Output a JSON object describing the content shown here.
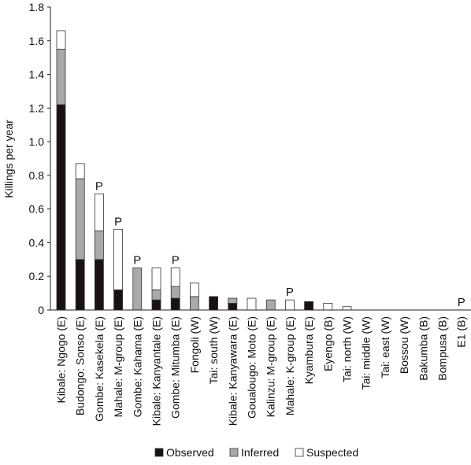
{
  "chart_data": {
    "type": "bar",
    "stacked": true,
    "ylabel": "Killings per year",
    "xlabel": "",
    "ylim": [
      0,
      1.8
    ],
    "yticks": [
      "0",
      "0.2",
      "0.4",
      "0.6",
      "0.8",
      "1.0",
      "1.2",
      "1.4",
      "1.6",
      "1.8"
    ],
    "grid": false,
    "legend_position": "bottom",
    "categories": [
      "Kibale: Ngogo (E)",
      "Budongo: Sonso (E)",
      "Gombe: Kasekela (E)",
      "Mahale: M-group (E)",
      "Gombe: Kahama (E)",
      "Kibale: Kanyantale (E)",
      "Gombe: Mitumba (E)",
      "Fongoli (W)",
      "Tai: south (W)",
      "Kibale: Kanyawara (E)",
      "Goualougo: Moto (E)",
      "Kalinzu: M-group (E)",
      "Mahale: K-group (E)",
      "Kyambura (E)",
      "Eyengo (B)",
      "Tai: north (W)",
      "Tai: middle (W)",
      "Tai: east (W)",
      "Bossou (W)",
      "Bakumba (B)",
      "Bompusa (B)",
      "E1 (B)"
    ],
    "series": [
      {
        "name": "Observed",
        "color": "#1a1212",
        "values": [
          1.22,
          0.3,
          0.3,
          0.12,
          0,
          0.06,
          0.07,
          0,
          0.08,
          0.04,
          0,
          0,
          0,
          0.05,
          0,
          0,
          0,
          0,
          0,
          0,
          0,
          0
        ]
      },
      {
        "name": "Inferred",
        "color": "#a9a9a9",
        "values": [
          0.33,
          0.48,
          0.17,
          0,
          0.25,
          0.06,
          0.07,
          0.08,
          0,
          0.03,
          0,
          0.06,
          0,
          0,
          0,
          0,
          0,
          0,
          0,
          0,
          0,
          0
        ]
      },
      {
        "name": "Suspected",
        "color": "#ffffff",
        "values": [
          0.11,
          0.09,
          0.22,
          0.36,
          0,
          0.13,
          0.11,
          0.08,
          0,
          0,
          0.07,
          0,
          0.06,
          0,
          0.04,
          0.02,
          0,
          0,
          0,
          0,
          0,
          0
        ]
      }
    ],
    "annotations": [
      {
        "category_index": 2,
        "text": "P"
      },
      {
        "category_index": 3,
        "text": "P"
      },
      {
        "category_index": 4,
        "text": "P"
      },
      {
        "category_index": 6,
        "text": "P"
      },
      {
        "category_index": 12,
        "text": "P"
      },
      {
        "category_index": 21,
        "text": "P"
      }
    ]
  }
}
